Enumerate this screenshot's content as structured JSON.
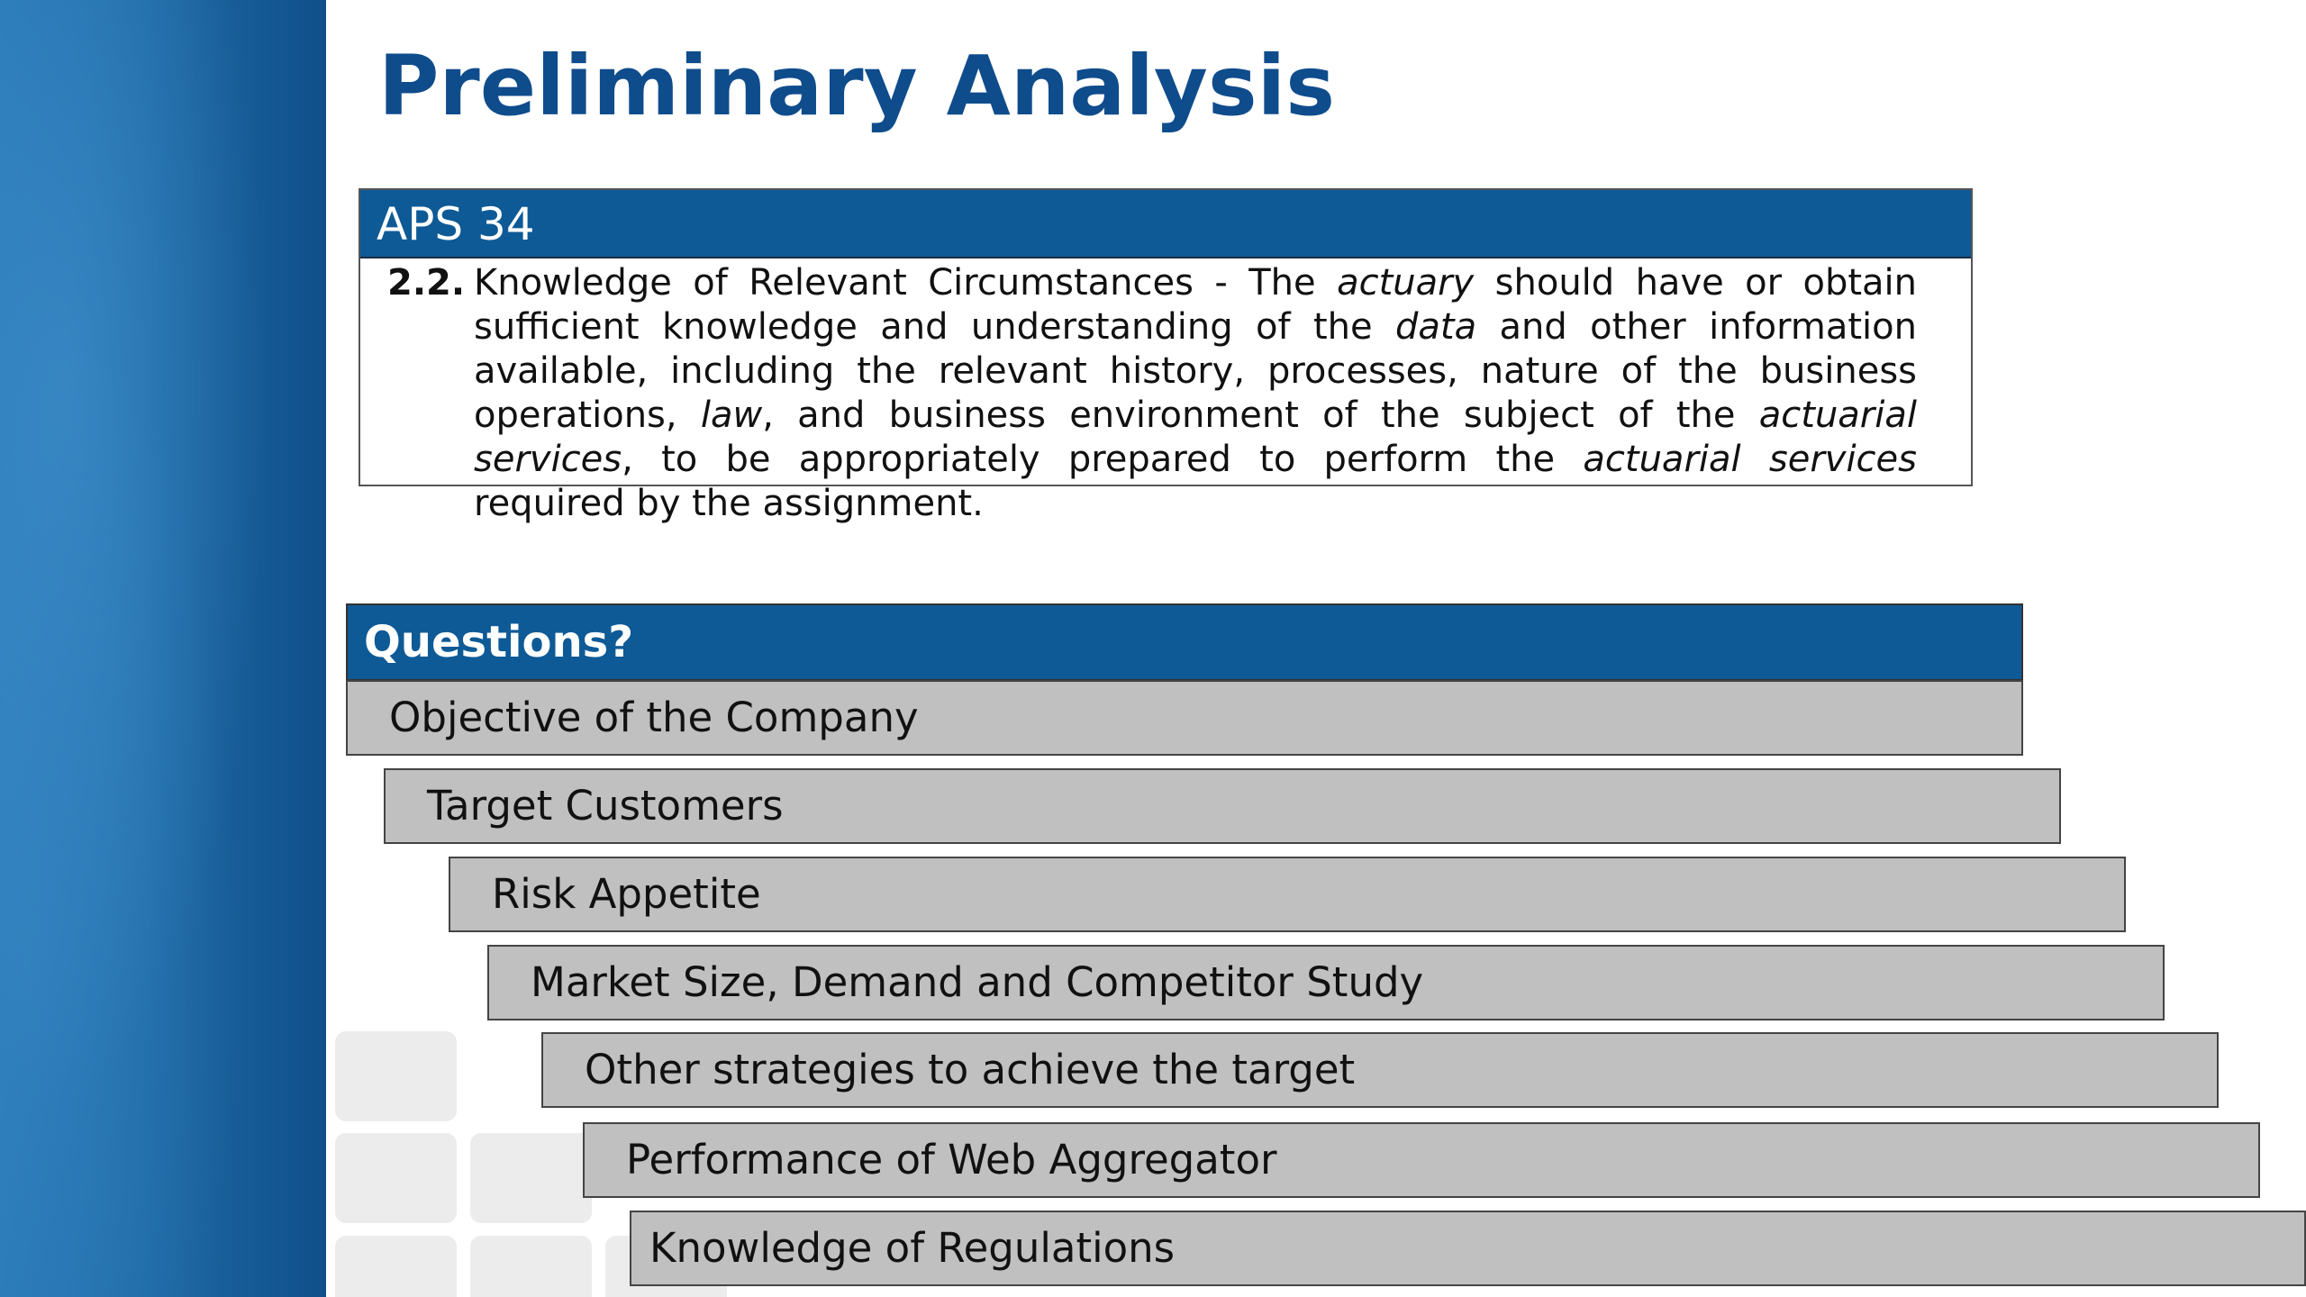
{
  "slide": {
    "title": "Preliminary Analysis"
  },
  "aps_box": {
    "header": "APS 34",
    "clause_number": "2.2.",
    "segments": [
      "Knowledge of Relevant Circumstances - The ",
      "actuary",
      " should have or obtain sufficient knowledge and understanding of the ",
      "data",
      " and other information available, including the relevant history, processes, nature of the business operations, ",
      "law",
      ", and business environment of the subject of the ",
      "actuarial services",
      ", to be appropriately prepared to perform the ",
      "actuarial services",
      " required by the assignment."
    ]
  },
  "questions": {
    "header": "Questions?",
    "items": [
      {
        "label": "Objective of the Company"
      },
      {
        "label": "Target Customers"
      },
      {
        "label": "Risk Appetite"
      },
      {
        "label": "Market Size, Demand and Competitor Study"
      },
      {
        "label": "Other strategies to achieve the target"
      },
      {
        "label": "Performance of Web Aggregator"
      },
      {
        "label": "Knowledge of Regulations"
      }
    ]
  }
}
